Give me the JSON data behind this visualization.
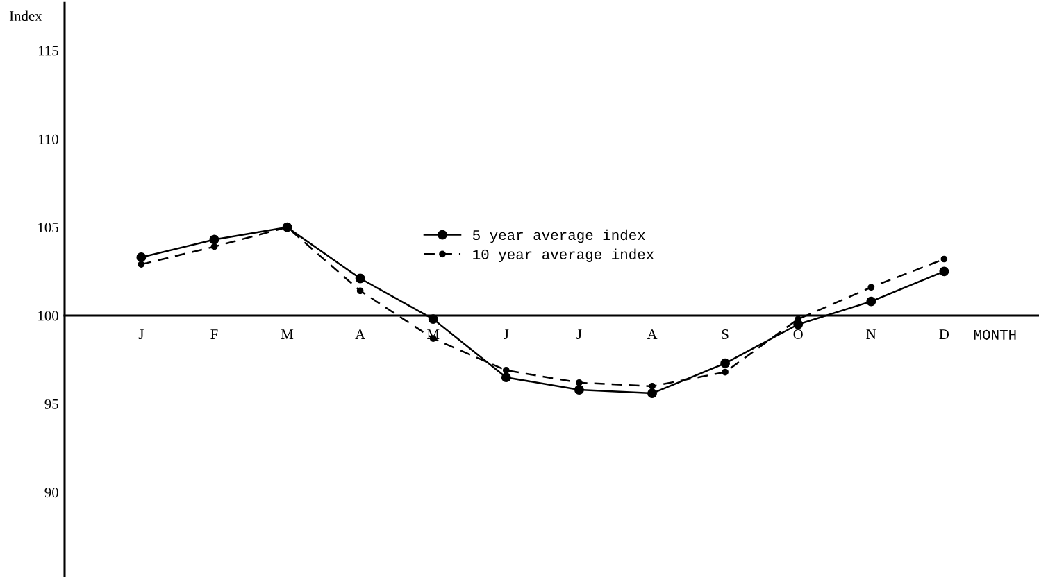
{
  "chart_data": {
    "type": "line",
    "ylabel": "Index",
    "xlabel": "MONTH",
    "categories": [
      "J",
      "F",
      "M",
      "A",
      "M",
      "J",
      "J",
      "A",
      "S",
      "O",
      "N",
      "D"
    ],
    "series": [
      {
        "name": "5 year average index",
        "color": "#000000",
        "line_style": "solid",
        "values": [
          103.3,
          104.3,
          105.0,
          102.1,
          99.8,
          96.5,
          95.8,
          95.6,
          97.3,
          99.5,
          100.8,
          102.5
        ]
      },
      {
        "name": "10 year average index",
        "color": "#000000",
        "line_style": "dashed",
        "values": [
          102.9,
          103.9,
          105.0,
          101.4,
          98.7,
          96.9,
          96.2,
          96.0,
          96.8,
          99.8,
          101.6,
          103.2
        ]
      }
    ],
    "ylim": [
      85.2,
      117.7
    ],
    "yticks": [
      90,
      95,
      100,
      105,
      110,
      115
    ],
    "marker": "circle",
    "grid": false,
    "legend": "top"
  }
}
